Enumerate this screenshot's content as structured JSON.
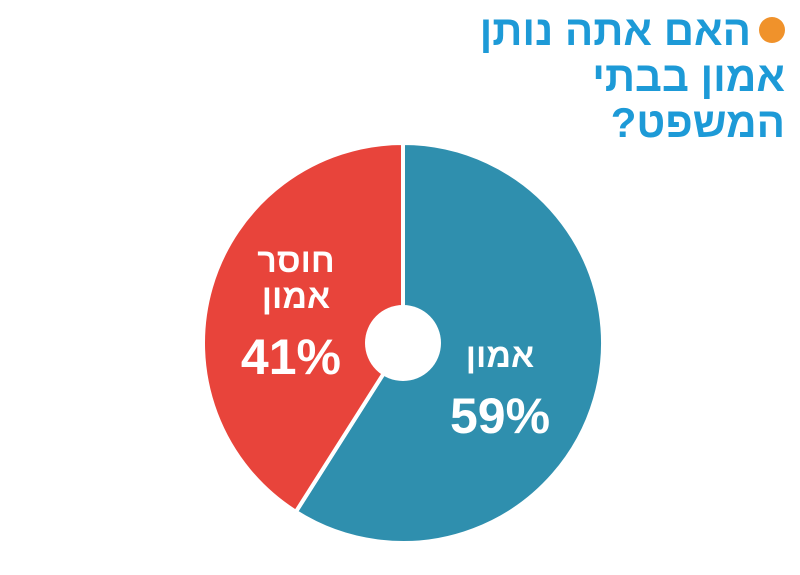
{
  "chart_data": {
    "type": "pie",
    "title": "האם אתה נותן אמון בבתי המשפט?",
    "categories": [
      "אמון",
      "חוסר אמון"
    ],
    "values": [
      59,
      41
    ],
    "value_labels": [
      "59%",
      "41%"
    ],
    "colors": [
      "#2f8fae",
      "#e8443b"
    ]
  }
}
